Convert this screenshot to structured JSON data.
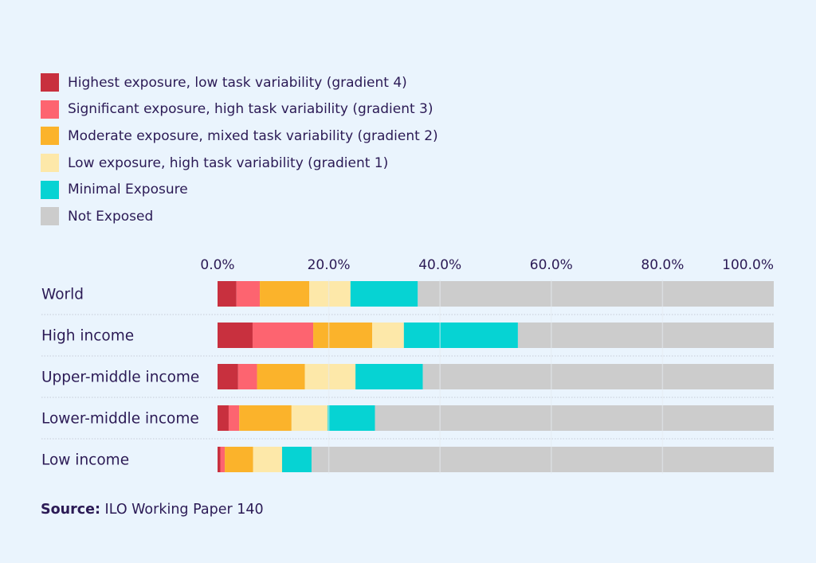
{
  "chart_data": {
    "type": "bar",
    "orientation": "horizontal",
    "stacked": true,
    "categories": [
      "World",
      "High income",
      "Upper-middle income",
      "Lower-middle income",
      "Low income"
    ],
    "series": [
      {
        "name": "Highest exposure, low task variability (gradient 4)",
        "color": "#c8303e",
        "values": [
          3.4,
          6.3,
          3.7,
          2.0,
          0.5
        ]
      },
      {
        "name": "Significant exposure, high task variability (gradient 3)",
        "color": "#fd6470",
        "values": [
          4.2,
          10.9,
          3.4,
          1.9,
          0.8
        ]
      },
      {
        "name": "Moderate exposure, mixed task variability (gradient 2)",
        "color": "#fbb32b",
        "values": [
          8.9,
          10.6,
          8.6,
          9.4,
          5.1
        ]
      },
      {
        "name": "Low exposure, high task variability (gradient 1)",
        "color": "#fde8a9",
        "values": [
          7.4,
          5.7,
          9.1,
          6.5,
          5.2
        ]
      },
      {
        "name": "Minimal Exposure",
        "color": "#06d3d3",
        "values": [
          12.1,
          20.5,
          12.1,
          8.5,
          5.3
        ]
      },
      {
        "name": "Not Exposed",
        "color": "#cccccc",
        "values": [
          64.0,
          46.0,
          63.1,
          71.7,
          83.1
        ]
      }
    ],
    "xlim": [
      0,
      100
    ],
    "xticks": [
      0,
      20,
      40,
      60,
      80,
      100
    ],
    "xtick_labels": [
      "0.0%",
      "20.0%",
      "40.0%",
      "60.0%",
      "80.0%",
      "100.0%"
    ],
    "axis_position": "top",
    "grid": true,
    "legend_position": "top-left",
    "title": "",
    "xlabel": "",
    "ylabel": ""
  },
  "source": {
    "label": "Source:",
    "text": " ILO Working Paper 140"
  }
}
